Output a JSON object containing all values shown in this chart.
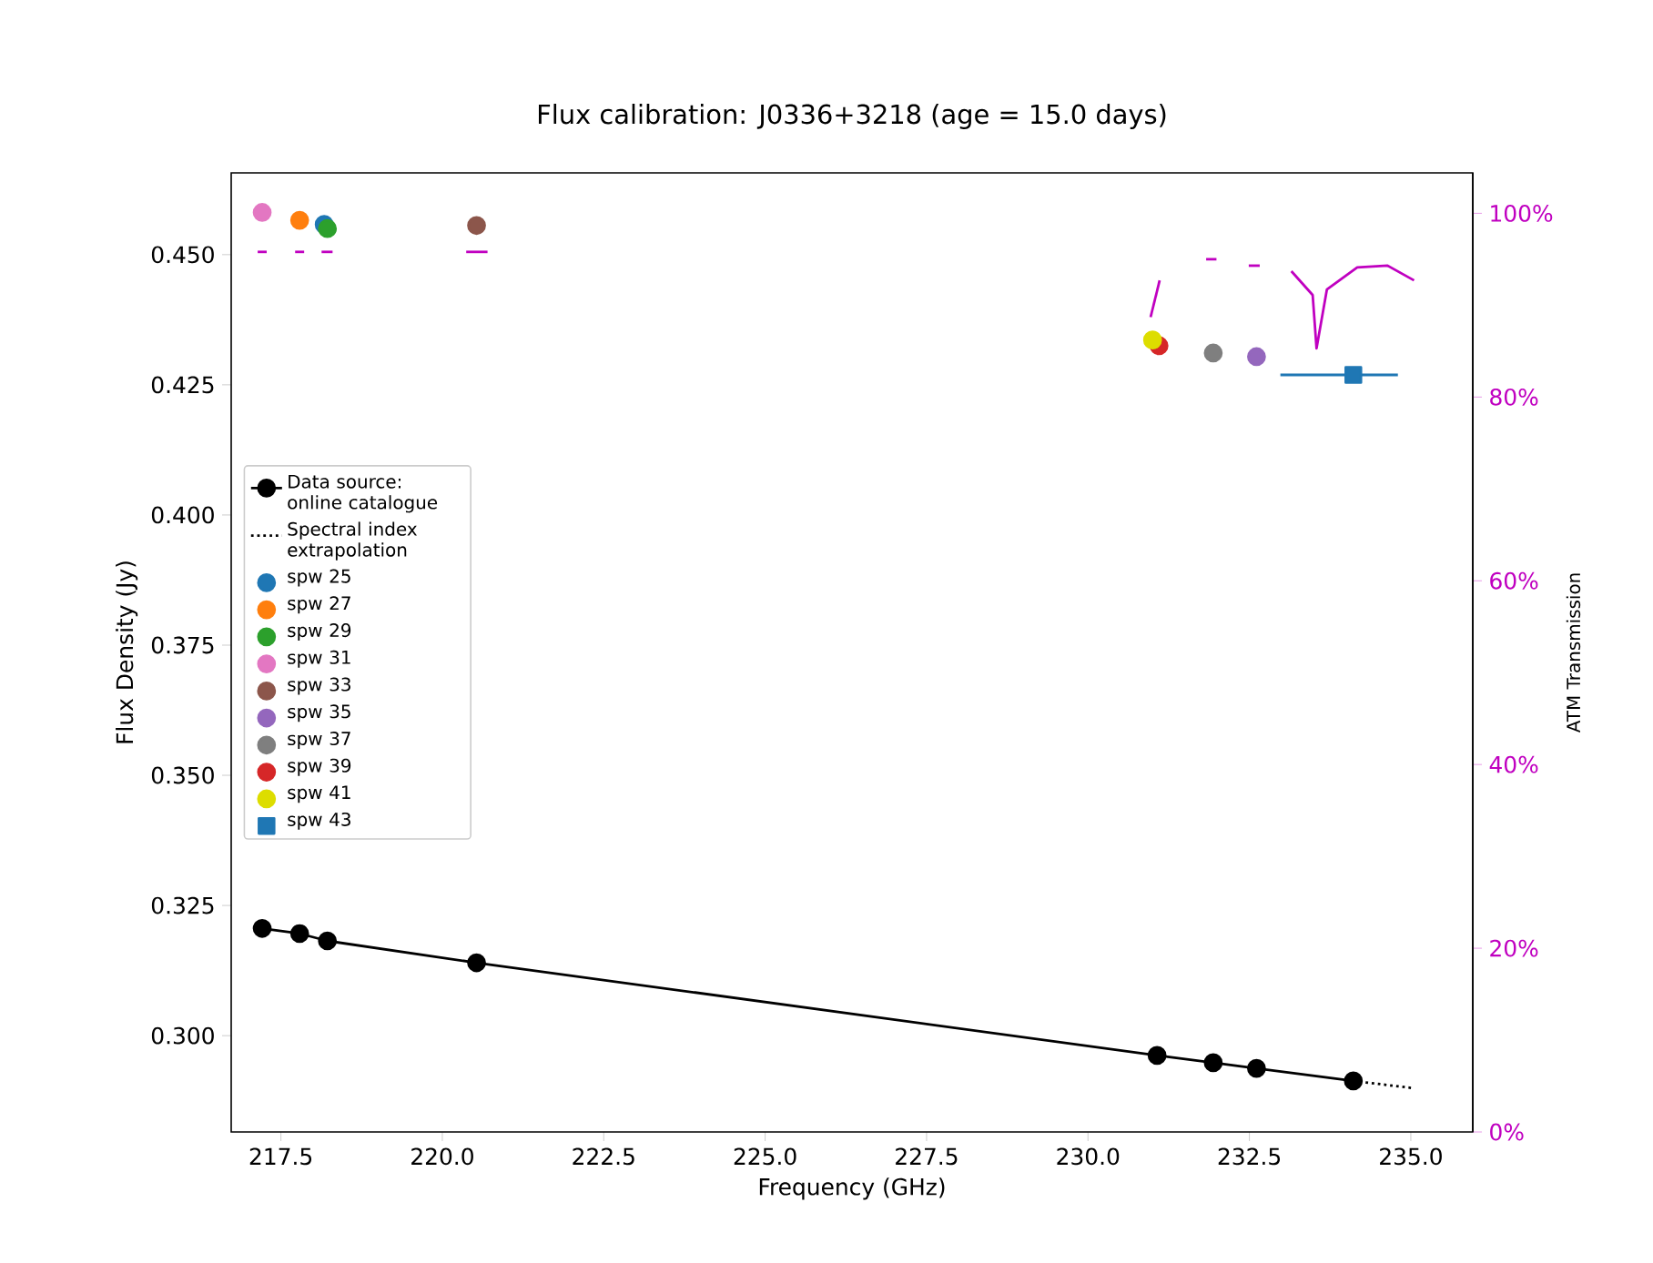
{
  "chart_data": {
    "type": "scatter",
    "title": "Flux calibration: J0336+3218 (age = 15.0 days)",
    "xlabel": "Frequency (GHz)",
    "ylabel": "Flux Density (Jy)",
    "y2label": "ATM Transmission",
    "xlim": [
      216.73,
      235.96
    ],
    "ylim": [
      0.2815,
      0.4657
    ],
    "y2lim": [
      0,
      104.4
    ],
    "xticks": [
      {
        "value": 217.5,
        "label": "217.5"
      },
      {
        "value": 220,
        "label": "220.0"
      },
      {
        "value": 222.5,
        "label": "222.5"
      },
      {
        "value": 225,
        "label": "225.0"
      },
      {
        "value": 227.5,
        "label": "227.5"
      },
      {
        "value": 230,
        "label": "230.0"
      },
      {
        "value": 232.5,
        "label": "232.5"
      },
      {
        "value": 235,
        "label": "235.0"
      }
    ],
    "yticks": [
      {
        "value": 0.3,
        "label": "0.300"
      },
      {
        "value": 0.325,
        "label": "0.325"
      },
      {
        "value": 0.35,
        "label": "0.350"
      },
      {
        "value": 0.375,
        "label": "0.375"
      },
      {
        "value": 0.4,
        "label": "0.400"
      },
      {
        "value": 0.425,
        "label": "0.425"
      },
      {
        "value": 0.45,
        "label": "0.450"
      }
    ],
    "y2ticks": [
      {
        "value": 0,
        "label": "0%"
      },
      {
        "value": 20,
        "label": "20%"
      },
      {
        "value": 40,
        "label": "40%"
      },
      {
        "value": 60,
        "label": "60%"
      },
      {
        "value": 80,
        "label": "80%"
      },
      {
        "value": 100,
        "label": "100%"
      }
    ],
    "legend": "center left",
    "series": [
      {
        "name": "Data source: online catalogue",
        "type": "line",
        "color": "#000000",
        "marker": "circle",
        "x": [
          217.21,
          217.79,
          218.22,
          220.53,
          231.07,
          231.94,
          232.61,
          234.11
        ],
        "values": [
          0.3206,
          0.3196,
          0.3182,
          0.314,
          0.2962,
          0.2948,
          0.2937,
          0.2913
        ]
      },
      {
        "name": "Spectral index extrapolation",
        "type": "line",
        "color": "#000000",
        "marker": "none",
        "line_style": "dotted",
        "x": [
          234.11,
          235.05
        ],
        "values": [
          0.2913,
          0.2899
        ]
      },
      {
        "name": "spw 25",
        "type": "scatter",
        "color": "#1f77b4",
        "marker": "circle",
        "x": [
          218.17
        ],
        "values": [
          0.4558
        ]
      },
      {
        "name": "spw 27",
        "color": "#ff7f0e",
        "marker": "circle",
        "x": [
          217.79
        ],
        "values": [
          0.4566
        ]
      },
      {
        "name": "spw 29",
        "color": "#2ca02c",
        "marker": "circle",
        "x": [
          218.22
        ],
        "values": [
          0.455
        ]
      },
      {
        "name": "spw 31",
        "color": "#e377c2",
        "marker": "circle",
        "x": [
          217.21
        ],
        "values": [
          0.4581
        ]
      },
      {
        "name": "spw 33",
        "color": "#8c564b",
        "marker": "circle",
        "x": [
          220.53
        ],
        "values": [
          0.4556
        ]
      },
      {
        "name": "spw 35",
        "color": "#9467bd",
        "marker": "circle",
        "x": [
          232.61
        ],
        "values": [
          0.4304
        ]
      },
      {
        "name": "spw 37",
        "color": "#7f7f7f",
        "marker": "circle",
        "x": [
          231.94
        ],
        "values": [
          0.4311
        ]
      },
      {
        "name": "spw 39",
        "color": "#d62728",
        "marker": "circle",
        "x": [
          231.1
        ],
        "values": [
          0.4325
        ]
      },
      {
        "name": "spw 41",
        "color": "#dddd00",
        "marker": "circle",
        "x": [
          231.0
        ],
        "values": [
          0.4336
        ]
      },
      {
        "name": "spw 43",
        "color": "#1f77b4",
        "marker": "square",
        "x": [
          234.11
        ],
        "values": [
          0.4269
        ],
        "xerrors": [
          [
            232.98,
            234.8
          ]
        ]
      },
      {
        "type": "line",
        "axis": "y2",
        "color": "#c000c0",
        "marker": "none",
        "x": [
          217.14,
          217.28
        ],
        "values": [
          95.8,
          95.8
        ]
      },
      {
        "type": "line",
        "axis": "y2",
        "color": "#c000c0",
        "marker": "none",
        "x": [
          217.72,
          217.86
        ],
        "values": [
          95.8,
          95.8
        ]
      },
      {
        "type": "line",
        "axis": "y2",
        "color": "#c000c0",
        "marker": "none",
        "x": [
          218.13,
          218.3
        ],
        "values": [
          95.8,
          95.8
        ]
      },
      {
        "type": "line",
        "axis": "y2",
        "color": "#c000c0",
        "marker": "none",
        "x": [
          220.37,
          220.7
        ],
        "values": [
          95.8,
          95.8
        ]
      },
      {
        "type": "line",
        "axis": "y2",
        "color": "#c000c0",
        "marker": "none",
        "x": [
          230.97,
          231.11
        ],
        "values": [
          88.7,
          92.7
        ]
      },
      {
        "type": "line",
        "axis": "y2",
        "color": "#c000c0",
        "marker": "none",
        "x": [
          231.83,
          231.99
        ],
        "values": [
          95.0,
          95.0
        ]
      },
      {
        "type": "line",
        "axis": "y2",
        "color": "#c000c0",
        "marker": "none",
        "x": [
          232.49,
          232.66
        ],
        "values": [
          94.3,
          94.3
        ]
      },
      {
        "type": "line",
        "axis": "y2",
        "color": "#c000c0",
        "marker": "none",
        "x": [
          233.15,
          233.48,
          233.54,
          233.7,
          234.17,
          234.64,
          235.05
        ],
        "values": [
          93.7,
          91.1,
          85.3,
          91.7,
          94.1,
          94.3,
          92.7
        ]
      }
    ]
  }
}
